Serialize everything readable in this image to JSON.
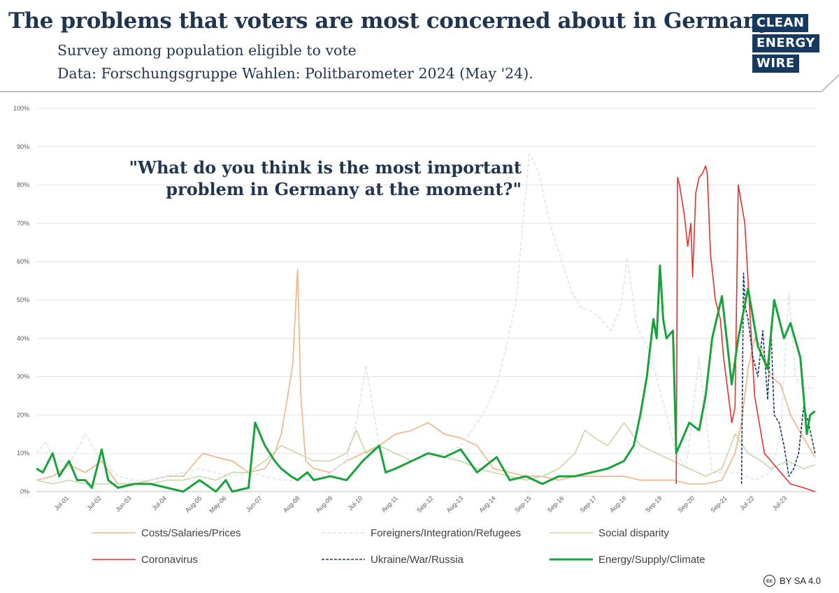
{
  "header": {
    "title": "The problems that voters are most concerned about in Germany.",
    "subtitle": "Survey among population eligible to vote",
    "source": "Data: Forschungsgruppe Wahlen: Politbarometer 2024 (May '24)."
  },
  "logo": {
    "lines": [
      "CLEAN",
      "ENERGY",
      "WIRE"
    ]
  },
  "question": "\"What do you think is the most important problem in Germany at the moment?\"",
  "license": {
    "icon": "cc-icon",
    "text": "BY SA 4.0"
  },
  "chart_data": {
    "type": "line",
    "title": "\"What do you think is the most important problem in Germany at the moment?\"",
    "xlabel": "",
    "ylabel": "",
    "ylim": [
      0,
      100
    ],
    "xlim": [
      2000.5,
      2024.4
    ],
    "y_ticks": [
      "0%",
      "10%",
      "20%",
      "30%",
      "40%",
      "50%",
      "60%",
      "70%",
      "80%",
      "90%",
      "100%"
    ],
    "x_ticks": [
      {
        "label": "Jul-01",
        "x": 2001.5
      },
      {
        "label": "Jul-02",
        "x": 2002.5
      },
      {
        "label": "Jun-03",
        "x": 2003.42
      },
      {
        "label": "Jul-04",
        "x": 2004.5
      },
      {
        "label": "Aug-05",
        "x": 2005.58
      },
      {
        "label": "May-06",
        "x": 2006.33
      },
      {
        "label": "Jun-07",
        "x": 2007.42
      },
      {
        "label": "Aug-08",
        "x": 2008.58
      },
      {
        "label": "Aug-09",
        "x": 2009.58
      },
      {
        "label": "Jul-10",
        "x": 2010.5
      },
      {
        "label": "Aug-11",
        "x": 2011.58
      },
      {
        "label": "Sep-12",
        "x": 2012.67
      },
      {
        "label": "Aug-13",
        "x": 2013.58
      },
      {
        "label": "Aug-14",
        "x": 2014.58
      },
      {
        "label": "Sep-15",
        "x": 2015.67
      },
      {
        "label": "Sep-16",
        "x": 2016.67
      },
      {
        "label": "Sep-17",
        "x": 2017.67
      },
      {
        "label": "Aug-18",
        "x": 2018.58
      },
      {
        "label": "Sep-19",
        "x": 2019.67
      },
      {
        "label": "Sep-20",
        "x": 2020.67
      },
      {
        "label": "Sep-21",
        "x": 2021.67
      },
      {
        "label": "Jul-22",
        "x": 2022.5
      },
      {
        "label": "Jul-23",
        "x": 2023.5
      }
    ],
    "series": [
      {
        "name": "Costs/Salaries/Prices",
        "color": "#f4b183",
        "dash": "solid",
        "x": [
          2000.5,
          2001.0,
          2001.5,
          2002.0,
          2002.5,
          2003.0,
          2003.5,
          2004.0,
          2004.5,
          2005.0,
          2005.3,
          2005.6,
          2006.0,
          2006.5,
          2007.0,
          2007.5,
          2007.8,
          2008.0,
          2008.2,
          2008.35,
          2008.5,
          2008.6,
          2008.75,
          2009.0,
          2009.5,
          2010.0,
          2010.5,
          2011.0,
          2011.5,
          2012.0,
          2012.5,
          2013.0,
          2013.5,
          2014.0,
          2014.5,
          2015.0,
          2015.5,
          2016.0,
          2016.5,
          2017.0,
          2017.5,
          2018.0,
          2018.5,
          2019.0,
          2019.5,
          2020.0,
          2020.5,
          2021.0,
          2021.5,
          2021.9,
          2022.1,
          2022.3,
          2022.5,
          2022.7,
          2023.0,
          2023.3,
          2023.6,
          2024.0,
          2024.35
        ],
        "values": [
          3,
          4,
          7,
          5,
          8,
          2,
          2,
          3,
          4,
          4,
          7,
          10,
          9,
          8,
          5,
          6,
          10,
          15,
          25,
          33,
          58,
          25,
          8,
          6,
          5,
          8,
          10,
          12,
          15,
          16,
          18,
          15,
          14,
          12,
          6,
          5,
          4,
          4,
          3,
          4,
          4,
          4,
          4,
          3,
          3,
          3,
          2,
          2,
          3,
          10,
          18,
          32,
          40,
          38,
          30,
          28,
          20,
          14,
          9
        ]
      },
      {
        "name": "Foreigners/Integration/Refugees",
        "color": "#d6e3f0",
        "dash": "dashed",
        "x": [
          2000.5,
          2000.8,
          2001.0,
          2001.5,
          2002.0,
          2002.5,
          2003.0,
          2003.5,
          2004.0,
          2004.5,
          2005.0,
          2005.5,
          2006.0,
          2006.5,
          2007.0,
          2007.5,
          2008.0,
          2008.5,
          2009.0,
          2009.5,
          2010.0,
          2010.3,
          2010.6,
          2011.0,
          2011.5,
          2012.0,
          2012.5,
          2013.0,
          2013.5,
          2014.0,
          2014.3,
          2014.6,
          2014.9,
          2015.2,
          2015.4,
          2015.6,
          2015.75,
          2015.9,
          2016.1,
          2016.3,
          2016.6,
          2016.9,
          2017.2,
          2017.5,
          2017.8,
          2018.1,
          2018.4,
          2018.6,
          2018.9,
          2019.2,
          2019.5,
          2019.8,
          2020.1,
          2020.4,
          2020.8,
          2021.2,
          2021.6,
          2022.0,
          2022.5,
          2023.0,
          2023.3,
          2023.55,
          2023.75,
          2024.0,
          2024.35
        ],
        "values": [
          10,
          13,
          9,
          7,
          15,
          8,
          4,
          3,
          3,
          4,
          5,
          6,
          5,
          4,
          5,
          4,
          3,
          3,
          3,
          5,
          8,
          18,
          33,
          12,
          10,
          8,
          9,
          10,
          12,
          18,
          22,
          28,
          38,
          50,
          70,
          88,
          86,
          83,
          75,
          68,
          60,
          52,
          48,
          47,
          45,
          42,
          48,
          61,
          43,
          38,
          30,
          20,
          10,
          6,
          35,
          5,
          5,
          5,
          3,
          5,
          15,
          52,
          30,
          27,
          27
        ]
      },
      {
        "name": "Social disparity",
        "color": "#c5d9a8",
        "dash": "solid",
        "x": [
          2000.5,
          2001.0,
          2001.5,
          2002.0,
          2002.5,
          2003.0,
          2003.5,
          2004.0,
          2004.5,
          2005.0,
          2005.5,
          2006.0,
          2006.5,
          2007.0,
          2007.5,
          2008.0,
          2008.5,
          2009.0,
          2009.5,
          2010.0,
          2010.3,
          2010.6,
          2011.0,
          2011.5,
          2012.0,
          2012.5,
          2013.0,
          2013.5,
          2014.0,
          2014.5,
          2015.0,
          2015.5,
          2016.0,
          2016.5,
          2017.0,
          2017.3,
          2017.6,
          2018.0,
          2018.5,
          2019.0,
          2019.5,
          2020.0,
          2020.5,
          2021.0,
          2021.5,
          2021.9,
          2022.3,
          2022.7,
          2023.0,
          2023.5,
          2024.0,
          2024.35
        ],
        "values": [
          3,
          2,
          3,
          2,
          2,
          2,
          2,
          2,
          3,
          3,
          4,
          3,
          5,
          5,
          8,
          12,
          10,
          8,
          8,
          10,
          16,
          10,
          12,
          10,
          8,
          10,
          9,
          8,
          6,
          5,
          4,
          3,
          4,
          6,
          10,
          16,
          14,
          12,
          18,
          12,
          10,
          8,
          6,
          4,
          6,
          15,
          10,
          8,
          6,
          8,
          6,
          7
        ]
      },
      {
        "name": "Coronavirus",
        "color": "#e8302d",
        "dash": "solid",
        "x": [
          2020.1,
          2020.14,
          2020.2,
          2020.35,
          2020.45,
          2020.55,
          2020.6,
          2020.7,
          2020.8,
          2020.9,
          2021.0,
          2021.05,
          2021.15,
          2021.3,
          2021.45,
          2021.55,
          2021.7,
          2021.8,
          2021.9,
          2022.0,
          2022.2,
          2022.5,
          2022.8,
          2023.2,
          2023.6,
          2024.0,
          2024.35
        ],
        "values": [
          2,
          82,
          80,
          72,
          64,
          70,
          56,
          78,
          82,
          83,
          85,
          83,
          62,
          50,
          45,
          35,
          25,
          18,
          22,
          80,
          70,
          25,
          10,
          6,
          2,
          1,
          0
        ]
      },
      {
        "name": "Ukraine/War/Russia",
        "color": "#1f3864",
        "dash": "dashed",
        "x": [
          2022.1,
          2022.16,
          2022.22,
          2022.3,
          2022.45,
          2022.6,
          2022.75,
          2022.9,
          2023.0,
          2023.1,
          2023.25,
          2023.4,
          2023.55,
          2023.7,
          2023.85,
          2024.0,
          2024.15,
          2024.35
        ],
        "values": [
          2,
          57,
          48,
          45,
          35,
          30,
          42,
          24,
          43,
          20,
          18,
          12,
          4,
          6,
          10,
          22,
          18,
          10
        ]
      },
      {
        "name": "Energy/Supply/Climate",
        "color": "#17a33a",
        "dash": "solid",
        "x": [
          2000.5,
          2000.7,
          2001.0,
          2001.2,
          2001.5,
          2001.75,
          2002.0,
          2002.2,
          2002.5,
          2002.7,
          2003.0,
          2003.5,
          2004.0,
          2004.5,
          2005.0,
          2005.5,
          2006.0,
          2006.3,
          2006.5,
          2007.0,
          2007.2,
          2007.5,
          2007.8,
          2008.0,
          2008.3,
          2008.5,
          2008.8,
          2009.0,
          2009.5,
          2010.0,
          2010.5,
          2011.0,
          2011.2,
          2011.5,
          2012.0,
          2012.5,
          2013.0,
          2013.5,
          2014.0,
          2014.3,
          2014.6,
          2015.0,
          2015.5,
          2016.0,
          2016.5,
          2017.0,
          2017.5,
          2018.0,
          2018.5,
          2018.8,
          2019.0,
          2019.2,
          2019.4,
          2019.5,
          2019.6,
          2019.7,
          2019.8,
          2020.0,
          2020.1,
          2020.2,
          2020.5,
          2020.8,
          2021.0,
          2021.2,
          2021.5,
          2021.8,
          2022.0,
          2022.3,
          2022.6,
          2022.9,
          2023.1,
          2023.4,
          2023.6,
          2023.9,
          2024.1,
          2024.2,
          2024.35
        ],
        "values": [
          6,
          5,
          10,
          4,
          8,
          3,
          3,
          1,
          11,
          3,
          1,
          2,
          2,
          1,
          0,
          3,
          0,
          3,
          0,
          1,
          18,
          12,
          8,
          6,
          4,
          3,
          5,
          3,
          4,
          3,
          8,
          12,
          5,
          6,
          8,
          10,
          9,
          11,
          5,
          7,
          9,
          3,
          4,
          2,
          4,
          4,
          5,
          6,
          8,
          12,
          20,
          30,
          45,
          40,
          59,
          45,
          40,
          42,
          10,
          12,
          18,
          16,
          25,
          40,
          51,
          28,
          40,
          53,
          38,
          32,
          50,
          40,
          44,
          35,
          15,
          20,
          21
        ]
      }
    ]
  }
}
